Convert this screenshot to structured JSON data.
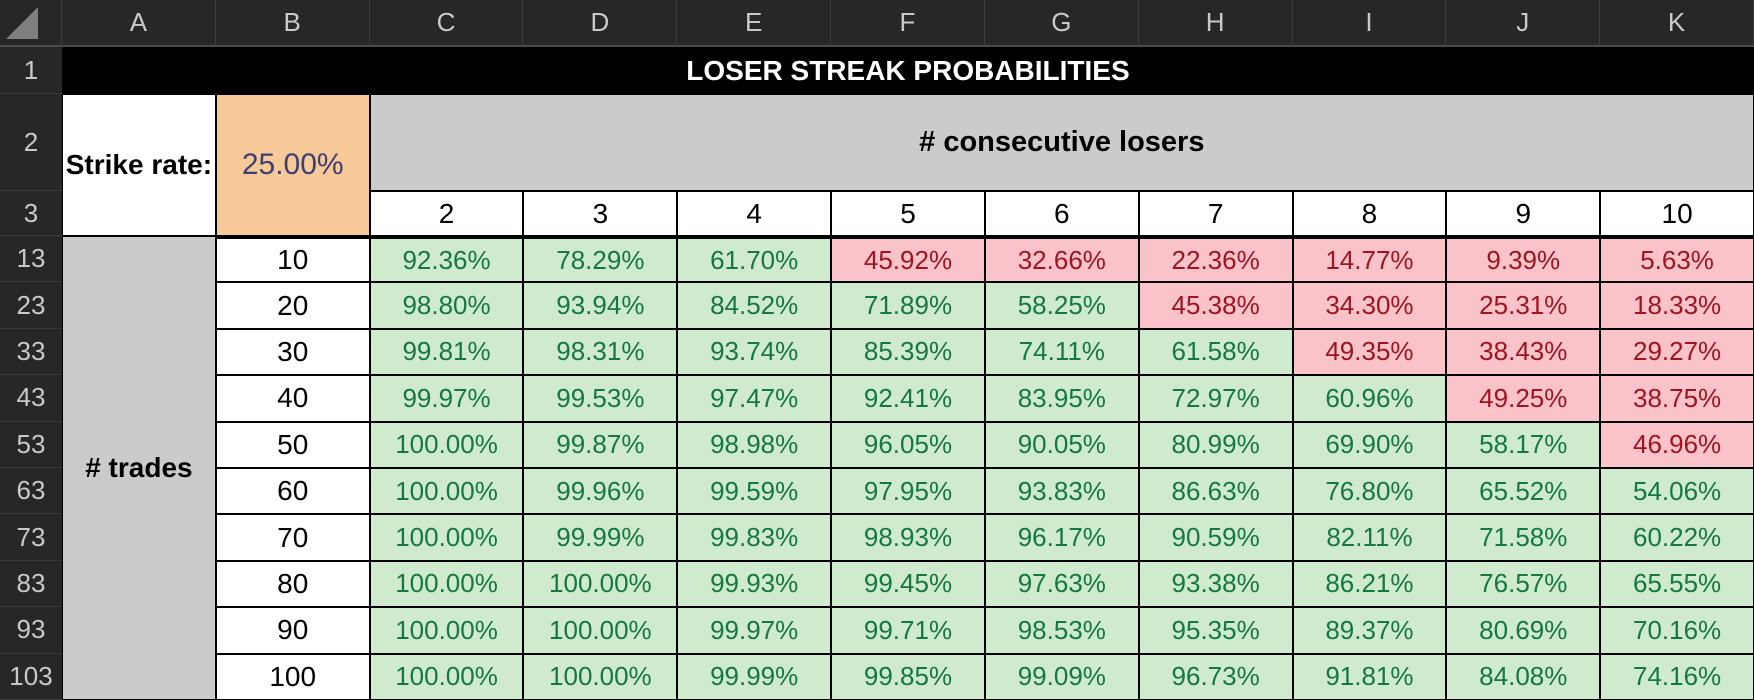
{
  "sheet": {
    "column_letters": [
      "A",
      "B",
      "C",
      "D",
      "E",
      "F",
      "G",
      "H",
      "I",
      "J",
      "K"
    ],
    "chrome_row_labels": [
      "1",
      "2",
      "3"
    ],
    "title": "LOSER STREAK PROBABILITIES",
    "strike_rate_label": "Strike rate:",
    "strike_rate_value": "25.00%",
    "consecutive_losers_label": "# consecutive losers",
    "streak_headers": [
      "2",
      "3",
      "4",
      "5",
      "6",
      "7",
      "8",
      "9",
      "10"
    ],
    "trades_label": "# trades",
    "rows": [
      {
        "row_number": "13",
        "trades": "10",
        "values": [
          "92.36%",
          "78.29%",
          "61.70%",
          "45.92%",
          "32.66%",
          "22.36%",
          "14.77%",
          "9.39%",
          "5.63%"
        ]
      },
      {
        "row_number": "23",
        "trades": "20",
        "values": [
          "98.80%",
          "93.94%",
          "84.52%",
          "71.89%",
          "58.25%",
          "45.38%",
          "34.30%",
          "25.31%",
          "18.33%"
        ]
      },
      {
        "row_number": "33",
        "trades": "30",
        "values": [
          "99.81%",
          "98.31%",
          "93.74%",
          "85.39%",
          "74.11%",
          "61.58%",
          "49.35%",
          "38.43%",
          "29.27%"
        ]
      },
      {
        "row_number": "43",
        "trades": "40",
        "values": [
          "99.97%",
          "99.53%",
          "97.47%",
          "92.41%",
          "83.95%",
          "72.97%",
          "60.96%",
          "49.25%",
          "38.75%"
        ]
      },
      {
        "row_number": "53",
        "trades": "50",
        "values": [
          "100.00%",
          "99.87%",
          "98.98%",
          "96.05%",
          "90.05%",
          "80.99%",
          "69.90%",
          "58.17%",
          "46.96%"
        ]
      },
      {
        "row_number": "63",
        "trades": "60",
        "values": [
          "100.00%",
          "99.96%",
          "99.59%",
          "97.95%",
          "93.83%",
          "86.63%",
          "76.80%",
          "65.52%",
          "54.06%"
        ]
      },
      {
        "row_number": "73",
        "trades": "70",
        "values": [
          "100.00%",
          "99.99%",
          "99.83%",
          "98.93%",
          "96.17%",
          "90.59%",
          "82.11%",
          "71.58%",
          "60.22%"
        ]
      },
      {
        "row_number": "83",
        "trades": "80",
        "values": [
          "100.00%",
          "100.00%",
          "99.93%",
          "99.45%",
          "97.63%",
          "93.38%",
          "86.21%",
          "76.57%",
          "65.55%"
        ]
      },
      {
        "row_number": "93",
        "trades": "90",
        "values": [
          "100.00%",
          "100.00%",
          "99.97%",
          "99.71%",
          "98.53%",
          "95.35%",
          "89.37%",
          "80.69%",
          "70.16%"
        ]
      },
      {
        "row_number": "103",
        "trades": "100",
        "values": [
          "100.00%",
          "100.00%",
          "99.99%",
          "99.85%",
          "99.09%",
          "96.73%",
          "91.81%",
          "84.08%",
          "74.16%"
        ]
      }
    ],
    "red_threshold_percent": 50,
    "annotations": [
      {
        "name": "blue-ellipse",
        "circled_value": "46.96%",
        "row_index": 4,
        "col_index": 8,
        "color": "#2BA9E0"
      },
      {
        "name": "purple-ellipse",
        "circled_value": "74.16%",
        "row_index": 9,
        "col_index": 8,
        "color": "#A15CA8"
      }
    ],
    "colors": {
      "green_bg": "#CFEACD",
      "green_text": "#157840",
      "red_bg": "#FAC3C9",
      "red_text": "#9E1420",
      "orange_bg": "#F8C998",
      "strike_value_text": "#3D4073",
      "band_gray": "#CBCBCB",
      "title_bg": "#000000",
      "title_text": "#FFFFFF",
      "chrome_bg": "#272727",
      "chrome_text": "#C9C9C9"
    }
  }
}
